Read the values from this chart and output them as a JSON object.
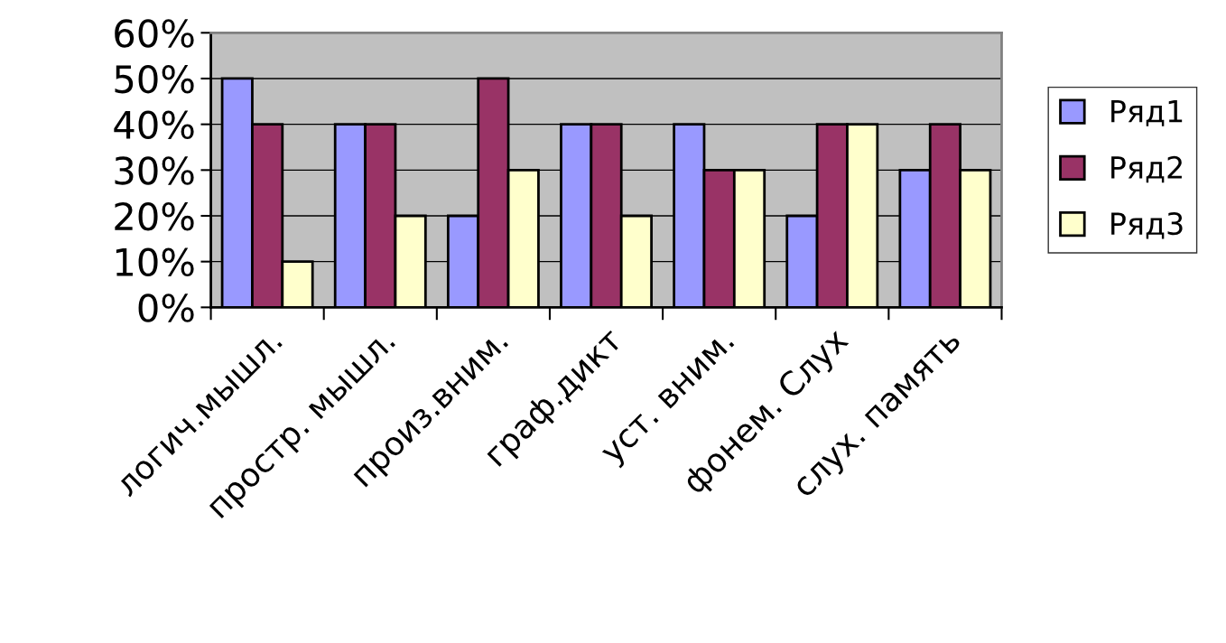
{
  "chart_data": {
    "type": "bar",
    "categories": [
      "логич.мышл.",
      "простр. мышл.",
      "произ.вним.",
      "граф.дикт",
      "уст. вним.",
      "фонем. Слух",
      "слух. память"
    ],
    "series": [
      {
        "name": "Ряд1",
        "color": "#9999ff",
        "values": [
          50,
          40,
          20,
          40,
          40,
          20,
          30
        ]
      },
      {
        "name": "Ряд2",
        "color": "#993366",
        "values": [
          40,
          40,
          50,
          40,
          30,
          40,
          40
        ]
      },
      {
        "name": "Ряд3",
        "color": "#ffffcc",
        "values": [
          10,
          20,
          30,
          20,
          30,
          40,
          30
        ]
      }
    ],
    "ylim": [
      0,
      60
    ],
    "yticks": [
      {
        "value": 0,
        "label": "0%"
      },
      {
        "value": 10,
        "label": "10%"
      },
      {
        "value": 20,
        "label": "20%"
      },
      {
        "value": 30,
        "label": "30%"
      },
      {
        "value": 40,
        "label": "40%"
      },
      {
        "value": 50,
        "label": "50%"
      },
      {
        "value": 60,
        "label": "60%"
      }
    ],
    "grid": "y",
    "legend": "right"
  }
}
